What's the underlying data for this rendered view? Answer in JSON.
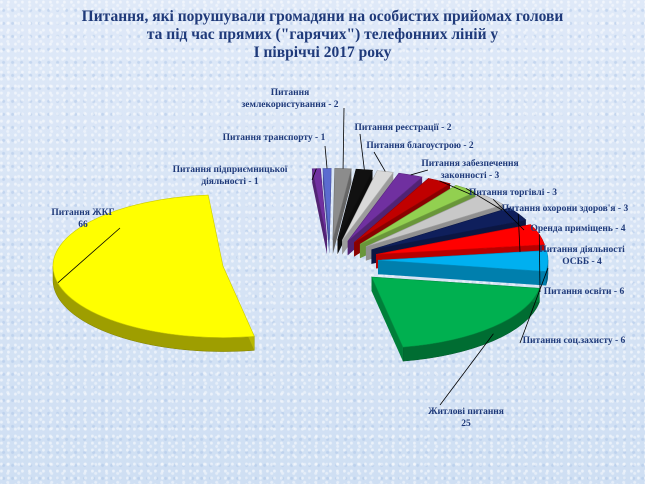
{
  "chart_data": {
    "type": "pie",
    "title_lines": [
      "Питання, які порушували громадяни на особистих прийомах голови",
      "та під час прямих (\"гарячих\") телефонних ліній у",
      "І півріччі 2017 року"
    ],
    "slices": [
      {
        "label_lines": [
          "Питання підприємницької",
          "діяльності  - 1"
        ],
        "value": 1,
        "color": "#7030a0"
      },
      {
        "label_lines": [
          "Питання транспорту - 1"
        ],
        "value": 1,
        "color": "#5b6bd0"
      },
      {
        "label_lines": [
          "Питання",
          "землекористування - 2"
        ],
        "value": 2,
        "color": "#8c8c8c"
      },
      {
        "label_lines": [
          "Питання реєстрації - 2"
        ],
        "value": 2,
        "color": "#111111"
      },
      {
        "label_lines": [
          "Питання благоустрою - 2"
        ],
        "value": 2,
        "color": "#d9d9d9"
      },
      {
        "label_lines": [
          "Питання забезпечення",
          "законності - 3"
        ],
        "value": 3,
        "color": "#7030a0"
      },
      {
        "label_lines": [
          "Питання торгівлі  - 3"
        ],
        "value": 3,
        "color": "#c00000"
      },
      {
        "label_lines": [
          "Питання охорони здоров'я - 3"
        ],
        "value": 3,
        "color": "#92d050"
      },
      {
        "label_lines": [
          "Оренда приміщень - 4"
        ],
        "value": 4,
        "color": "#c8c8c8"
      },
      {
        "label_lines": [
          "Питання діяльності",
          "ОСББ - 4"
        ],
        "value": 4,
        "color": "#0f1f5c"
      },
      {
        "label_lines": [
          "Питання освіти - 6"
        ],
        "value": 6,
        "color": "#ff0000"
      },
      {
        "label_lines": [
          "Питання соц.захисту - 6"
        ],
        "value": 6,
        "color": "#00b0f0"
      },
      {
        "label_lines": [
          "Житлові питання",
          "25"
        ],
        "value": 25,
        "color": "#00b050"
      },
      {
        "label_lines": [
          "Питання ЖКГ",
          "66"
        ],
        "value": 66,
        "color": "#ffff00"
      }
    ]
  }
}
